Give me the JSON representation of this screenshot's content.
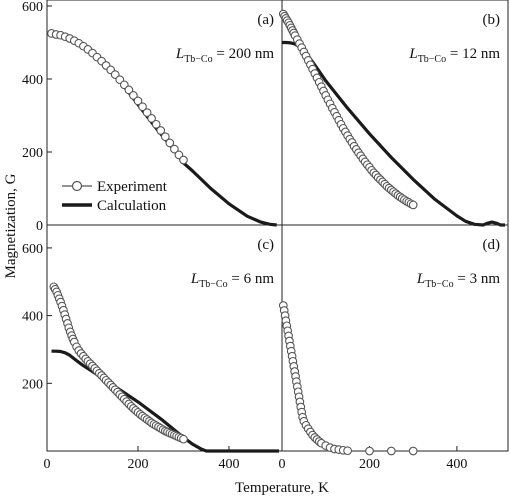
{
  "figure": {
    "xlabel": "Temperature, K",
    "ylabel": "Magnetization, G",
    "legend": {
      "experiment": "Experiment",
      "calculation": "Calculation",
      "placement": "top-left of panel (a)"
    },
    "colors": {
      "line": "#1a1a1a",
      "marker_edge": "#555555",
      "marker_fill": "#ffffff"
    }
  },
  "chart_data": [
    {
      "type": "line",
      "panel_label": "(a)",
      "annotation": {
        "main": "L",
        "sub": "Tb−Co",
        "rest": " = 200 nm"
      },
      "xlim": [
        0,
        510
      ],
      "ylim": [
        0,
        600
      ],
      "x_ticks": [],
      "y_ticks": [
        0,
        200,
        400,
        600
      ],
      "series": [
        {
          "name": "Calculation",
          "x": [
            5,
            40,
            80,
            120,
            160,
            200,
            240,
            280,
            300,
            320,
            360,
            400,
            440,
            470,
            490,
            505
          ],
          "y": [
            530,
            522,
            495,
            450,
            395,
            330,
            265,
            205,
            170,
            148,
            100,
            58,
            24,
            8,
            2,
            0
          ]
        },
        {
          "name": "Experiment",
          "x": [
            10,
            20,
            30,
            40,
            50,
            60,
            70,
            80,
            90,
            100,
            110,
            120,
            130,
            140,
            150,
            160,
            170,
            180,
            190,
            200,
            210,
            220,
            230,
            240,
            250,
            260,
            270,
            280,
            290,
            300
          ],
          "y": [
            525,
            522,
            520,
            516,
            511,
            505,
            498,
            490,
            481,
            471,
            460,
            449,
            437,
            425,
            412,
            398,
            384,
            370,
            355,
            340,
            324,
            308,
            292,
            276,
            259,
            242,
            225,
            208,
            192,
            178
          ]
        }
      ]
    },
    {
      "type": "line",
      "panel_label": "(b)",
      "annotation": {
        "main": "L",
        "sub": "Tb−Co",
        "rest": " = 12 nm"
      },
      "xlim": [
        0,
        510
      ],
      "ylim": [
        0,
        600
      ],
      "x_ticks": [],
      "y_ticks": [],
      "series": [
        {
          "name": "Calculation",
          "x": [
            0,
            10,
            20,
            30,
            40,
            60,
            80,
            100,
            150,
            200,
            250,
            300,
            350,
            400,
            420,
            440,
            460,
            470,
            480,
            490,
            500,
            510
          ],
          "y": [
            500,
            500,
            499,
            496,
            488,
            463,
            430,
            395,
            320,
            250,
            185,
            125,
            70,
            25,
            10,
            2,
            0,
            5,
            8,
            5,
            0,
            0
          ]
        },
        {
          "name": "Experiment",
          "x": [
            3,
            6,
            9,
            12,
            15,
            18,
            21,
            24,
            27,
            30,
            35,
            40,
            45,
            50,
            55,
            60,
            65,
            70,
            75,
            80,
            85,
            90,
            95,
            100,
            105,
            110,
            115,
            120,
            125,
            130,
            135,
            140,
            145,
            150,
            155,
            160,
            165,
            170,
            175,
            180,
            185,
            190,
            195,
            200,
            205,
            210,
            215,
            220,
            225,
            230,
            235,
            240,
            245,
            250,
            255,
            260,
            265,
            270,
            275,
            280,
            285,
            290,
            295,
            300
          ],
          "y": [
            578,
            572,
            566,
            560,
            554,
            547,
            540,
            533,
            526,
            519,
            508,
            497,
            486,
            474,
            463,
            451,
            439,
            427,
            415,
            403,
            391,
            379,
            367,
            355,
            343,
            332,
            320,
            309,
            298,
            287,
            276,
            265,
            255,
            245,
            235,
            226,
            216,
            207,
            198,
            190,
            181,
            173,
            165,
            158,
            150,
            143,
            137,
            130,
            124,
            118,
            112,
            106,
            101,
            96,
            91,
            86,
            81,
            77,
            73,
            69,
            65,
            62,
            58,
            55
          ]
        }
      ]
    },
    {
      "type": "line",
      "panel_label": "(c)",
      "annotation": {
        "main": "L",
        "sub": "Tb−Co",
        "rest": " = 6 nm"
      },
      "xlim": [
        0,
        510
      ],
      "ylim": [
        0,
        650
      ],
      "x_ticks": [
        0,
        200,
        400
      ],
      "y_ticks": [
        200,
        400,
        600
      ],
      "series": [
        {
          "name": "Calculation",
          "x": [
            10,
            20,
            30,
            40,
            50,
            60,
            70,
            80,
            100,
            150,
            200,
            250,
            280,
            300,
            320,
            340,
            350,
            360,
            380,
            400,
            450,
            510
          ],
          "y": [
            295,
            295,
            294,
            290,
            283,
            272,
            262,
            252,
            235,
            190,
            145,
            95,
            62,
            40,
            20,
            5,
            0,
            0,
            0,
            0,
            0,
            0
          ]
        },
        {
          "name": "Experiment",
          "x": [
            15,
            18,
            21,
            24,
            27,
            30,
            33,
            36,
            39,
            42,
            45,
            48,
            51,
            54,
            57,
            60,
            65,
            70,
            75,
            80,
            85,
            90,
            95,
            100,
            105,
            110,
            115,
            120,
            125,
            130,
            135,
            140,
            145,
            150,
            155,
            160,
            165,
            170,
            175,
            180,
            185,
            190,
            195,
            200,
            205,
            210,
            215,
            220,
            225,
            230,
            235,
            240,
            245,
            250,
            255,
            260,
            265,
            270,
            275,
            280,
            285,
            290,
            295,
            300
          ],
          "y": [
            485,
            478,
            470,
            460,
            450,
            440,
            428,
            416,
            403,
            390,
            377,
            364,
            352,
            341,
            331,
            322,
            308,
            297,
            288,
            280,
            272,
            265,
            258,
            251,
            244,
            237,
            230,
            223,
            216,
            209,
            202,
            195,
            188,
            181,
            174,
            167,
            160,
            153,
            146,
            139,
            132,
            126,
            120,
            114,
            108,
            103,
            98,
            93,
            88,
            83,
            79,
            75,
            71,
            67,
            63,
            59,
            56,
            53,
            50,
            47,
            44,
            41,
            38,
            35
          ]
        }
      ]
    },
    {
      "type": "scatter",
      "panel_label": "(d)",
      "annotation": {
        "main": "L",
        "sub": "Tb−Co",
        "rest": " = 3 nm"
      },
      "xlim": [
        0,
        510
      ],
      "ylim": [
        0,
        650
      ],
      "x_ticks": [
        0,
        200,
        400
      ],
      "y_ticks": [],
      "series": [
        {
          "name": "Experiment",
          "x": [
            3,
            5,
            7,
            9,
            11,
            13,
            15,
            17,
            19,
            21,
            23,
            25,
            27,
            29,
            31,
            33,
            35,
            37,
            39,
            41,
            43,
            45,
            47,
            50,
            55,
            60,
            65,
            70,
            75,
            80,
            85,
            90,
            100,
            110,
            120,
            130,
            140,
            150,
            200,
            250,
            300
          ],
          "y": [
            430,
            415,
            400,
            385,
            370,
            355,
            340,
            325,
            310,
            295,
            280,
            265,
            250,
            235,
            220,
            205,
            190,
            175,
            160,
            145,
            130,
            115,
            100,
            88,
            76,
            66,
            56,
            47,
            40,
            34,
            28,
            23,
            16,
            10,
            6,
            4,
            2,
            1,
            0,
            0,
            0
          ]
        }
      ]
    }
  ]
}
